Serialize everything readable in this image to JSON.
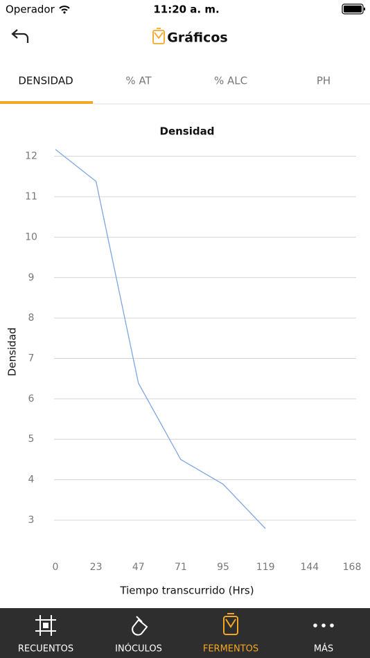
{
  "status_bar": {
    "carrier": "Operador",
    "time": "11:20 a. m."
  },
  "header": {
    "title": "Gráficos"
  },
  "tabs": [
    "DENSIDAD",
    "% AT",
    "% ALC",
    "PH"
  ],
  "chart_data": {
    "type": "line",
    "title": "Densidad",
    "x_label": "Tiempo transcurrido (Hrs)",
    "y_label": "Densidad",
    "x": [
      0,
      23,
      47,
      71,
      95,
      119
    ],
    "series": [
      {
        "name": "Densidad",
        "color": "#7ea6e3",
        "values": [
          12.17,
          11.38,
          6.39,
          4.5,
          3.89,
          2.79
        ]
      }
    ],
    "xlim": [
      0,
      168
    ],
    "xticks": [
      0,
      23,
      47,
      71,
      95,
      119,
      144,
      168
    ],
    "ylim": [
      2.4,
      12.2
    ],
    "yticks": [
      3,
      4,
      5,
      6,
      7,
      8,
      9,
      10,
      11,
      12
    ],
    "grid": true
  },
  "nav": [
    "RECUENTOS",
    "INÓCULOS",
    "FERMENTOS",
    "MÁS"
  ]
}
